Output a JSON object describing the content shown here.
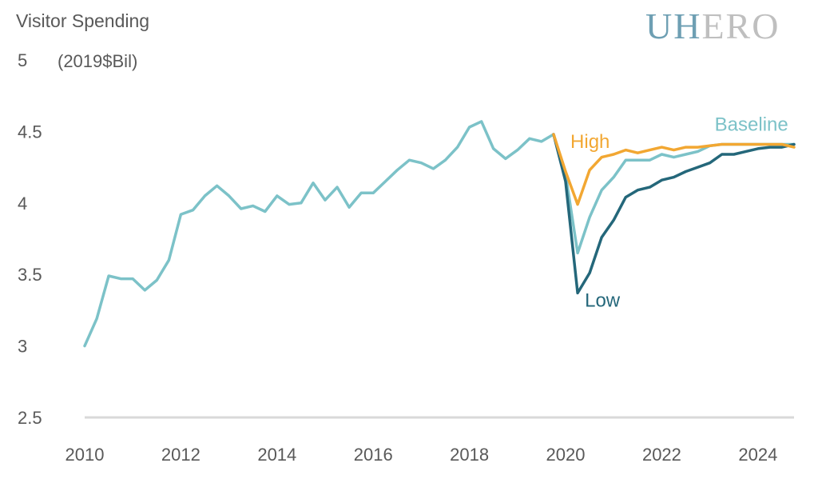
{
  "chart_data": {
    "type": "line",
    "title": "Visitor Spending",
    "ylabel": "(2019$Bil)",
    "xlabel": "",
    "ylim": [
      2.5,
      5
    ],
    "xlim": [
      2010,
      2024.75
    ],
    "yticks": [
      2.5,
      3,
      3.5,
      4,
      4.5,
      5
    ],
    "ytick_labels": [
      "2.5",
      "3",
      "3.5",
      "4",
      "4.5",
      "5"
    ],
    "xticks": [
      2010,
      2012,
      2014,
      2016,
      2018,
      2020,
      2022,
      2024
    ],
    "xtick_labels": [
      "2010",
      "2012",
      "2014",
      "2016",
      "2018",
      "2020",
      "2022",
      "2024"
    ],
    "grid": false,
    "logo": {
      "part1": "UH",
      "part2": "ERO",
      "color1": "#6e9fb3",
      "color2": "#bfbfbf"
    },
    "series": [
      {
        "name": "Baseline",
        "color": "#7cc2c8",
        "label_x": 2023.1,
        "label_y": 4.55,
        "x": [
          2010,
          2010.25,
          2010.5,
          2010.75,
          2011,
          2011.25,
          2011.5,
          2011.75,
          2012,
          2012.25,
          2012.5,
          2012.75,
          2013,
          2013.25,
          2013.5,
          2013.75,
          2014,
          2014.25,
          2014.5,
          2014.75,
          2015,
          2015.25,
          2015.5,
          2015.75,
          2016,
          2016.25,
          2016.5,
          2016.75,
          2017,
          2017.25,
          2017.5,
          2017.75,
          2018,
          2018.25,
          2018.5,
          2018.75,
          2019,
          2019.25,
          2019.5,
          2019.75,
          2020,
          2020.25,
          2020.5,
          2020.75,
          2021,
          2021.25,
          2021.5,
          2021.75,
          2022,
          2022.25,
          2022.5,
          2022.75,
          2023,
          2023.25,
          2023.5,
          2023.75,
          2024,
          2024.25,
          2024.5,
          2024.75
        ],
        "values": [
          3.0,
          3.19,
          3.49,
          3.47,
          3.47,
          3.39,
          3.46,
          3.6,
          3.92,
          3.95,
          4.05,
          4.12,
          4.05,
          3.96,
          3.98,
          3.94,
          4.05,
          3.99,
          4.0,
          4.14,
          4.02,
          4.11,
          3.97,
          4.07,
          4.07,
          4.15,
          4.23,
          4.3,
          4.28,
          4.24,
          4.3,
          4.39,
          4.53,
          4.57,
          4.38,
          4.31,
          4.37,
          4.45,
          4.43,
          4.48,
          4.2,
          3.65,
          3.9,
          4.09,
          4.18,
          4.3,
          4.3,
          4.3,
          4.34,
          4.32,
          4.34,
          4.36,
          4.4,
          4.41,
          4.41,
          4.41,
          4.41,
          4.41,
          4.41,
          4.41
        ]
      },
      {
        "name": "High",
        "color": "#f2a732",
        "label_x": 2020.1,
        "label_y": 4.43,
        "x": [
          2019.75,
          2020,
          2020.25,
          2020.5,
          2020.75,
          2021,
          2021.25,
          2021.5,
          2021.75,
          2022,
          2022.25,
          2022.5,
          2022.75,
          2023,
          2023.25,
          2023.5,
          2023.75,
          2024,
          2024.25,
          2024.5,
          2024.75
        ],
        "values": [
          4.48,
          4.22,
          3.99,
          4.23,
          4.32,
          4.34,
          4.37,
          4.35,
          4.37,
          4.39,
          4.37,
          4.39,
          4.39,
          4.4,
          4.41,
          4.41,
          4.41,
          4.41,
          4.41,
          4.41,
          4.39
        ]
      },
      {
        "name": "Low",
        "color": "#24677a",
        "label_x": 2020.4,
        "label_y": 3.32,
        "x": [
          2019.75,
          2020,
          2020.25,
          2020.5,
          2020.75,
          2021,
          2021.25,
          2021.5,
          2021.75,
          2022,
          2022.25,
          2022.5,
          2022.75,
          2023,
          2023.25,
          2023.5,
          2023.75,
          2024,
          2024.25,
          2024.5,
          2024.75
        ],
        "values": [
          4.48,
          4.15,
          3.37,
          3.51,
          3.76,
          3.88,
          4.04,
          4.09,
          4.11,
          4.16,
          4.18,
          4.22,
          4.25,
          4.28,
          4.34,
          4.34,
          4.36,
          4.38,
          4.39,
          4.39,
          4.41
        ]
      }
    ]
  }
}
